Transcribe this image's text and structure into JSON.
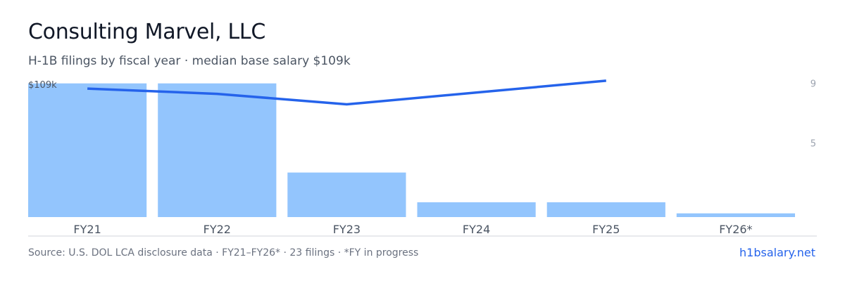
{
  "header": {
    "title": "Consulting Marvel, LLC",
    "subtitle": "H-1B filings by fiscal year · median base salary $109k"
  },
  "footer": {
    "source": "Source: U.S. DOL LCA disclosure data · FY21–FY26* · 23 filings · *FY in progress",
    "link": "h1bsalary.net"
  },
  "colors": {
    "bar": "#93c5fd",
    "line": "#2563eb",
    "axis": "#d1d5db",
    "tick_text": "#4b5563",
    "right_tick_text": "#9ca3af"
  },
  "chart_data": {
    "type": "bar",
    "categories": [
      "FY21",
      "FY22",
      "FY23",
      "FY24",
      "FY25",
      "FY26*"
    ],
    "series": [
      {
        "type": "bar",
        "axis": "right",
        "values": [
          9,
          9,
          3,
          1,
          1,
          0.25
        ]
      },
      {
        "type": "line",
        "axis": "left",
        "values": [
          106,
          104,
          100,
          null,
          109,
          null
        ]
      }
    ],
    "left_axis": {
      "tick_label": "$109k",
      "ylim": [
        57,
        113
      ]
    },
    "right_axis": {
      "ticks": [
        "9",
        "5"
      ],
      "ylim": [
        0,
        9.6
      ]
    },
    "grid": false
  }
}
